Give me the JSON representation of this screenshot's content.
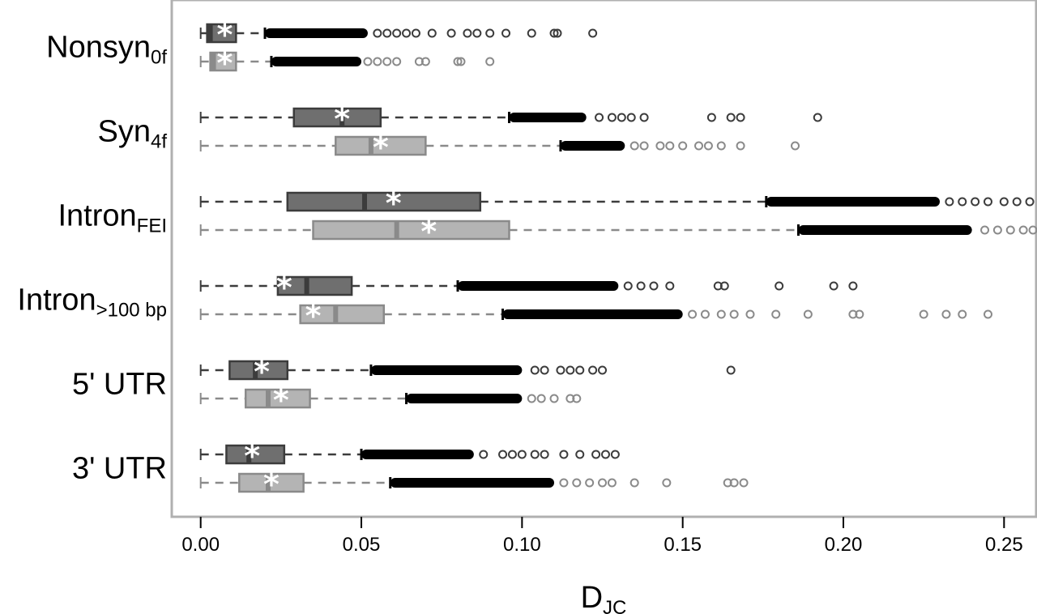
{
  "chart_data": {
    "type": "boxplot",
    "xlabel": "D",
    "xlabel_sub": "JC",
    "xlim": [
      -0.009,
      0.26
    ],
    "x_ticks": [
      {
        "value": 0.0,
        "label": "0.00"
      },
      {
        "value": 0.05,
        "label": "0.05"
      },
      {
        "value": 0.1,
        "label": "0.10"
      },
      {
        "value": 0.15,
        "label": "0.15"
      },
      {
        "value": 0.2,
        "label": "0.20"
      },
      {
        "value": 0.25,
        "label": "0.25"
      }
    ],
    "grid": false,
    "mean_marker": "*",
    "colors": {
      "series_dark": "#6f6f6f",
      "series_light": "#b4b4b4",
      "dark_stroke": "#3c3c3c",
      "light_stroke": "#8a8a8a",
      "frame": "#b0b0b0"
    },
    "categories": [
      {
        "name": "Nonsyn",
        "sub": "0f",
        "boxes": [
          {
            "whisker_low": 0.0,
            "q1": 0.002,
            "median": 0.003,
            "q3": 0.011,
            "whisker_high": 0.02,
            "mean": 0.0075,
            "outlier_dense_to": 0.052,
            "outliers": [
              0.055,
              0.058,
              0.061,
              0.064,
              0.067,
              0.072,
              0.078,
              0.083,
              0.086,
              0.09,
              0.095,
              0.103,
              0.11,
              0.111,
              0.122
            ]
          },
          {
            "whisker_low": 0.0,
            "q1": 0.003,
            "median": 0.004,
            "q3": 0.011,
            "whisker_high": 0.022,
            "mean": 0.0075,
            "outlier_dense_to": 0.05,
            "outliers": [
              0.052,
              0.055,
              0.058,
              0.061,
              0.068,
              0.07,
              0.08,
              0.081,
              0.09
            ]
          }
        ]
      },
      {
        "name": "Syn",
        "sub": "4f",
        "boxes": [
          {
            "whisker_low": 0.0,
            "q1": 0.029,
            "median": 0.044,
            "q3": 0.056,
            "whisker_high": 0.096,
            "mean": 0.044,
            "outlier_dense_to": 0.12,
            "outliers": [
              0.124,
              0.128,
              0.131,
              0.134,
              0.138,
              0.159,
              0.165,
              0.168,
              0.192
            ]
          },
          {
            "whisker_low": 0.0,
            "q1": 0.042,
            "median": 0.053,
            "q3": 0.07,
            "whisker_high": 0.112,
            "mean": 0.056,
            "outlier_dense_to": 0.132,
            "outliers": [
              0.135,
              0.138,
              0.143,
              0.146,
              0.15,
              0.155,
              0.158,
              0.162,
              0.168,
              0.185
            ]
          }
        ]
      },
      {
        "name": "Intron",
        "sub": "FEI",
        "boxes": [
          {
            "whisker_low": 0.0,
            "q1": 0.027,
            "median": 0.051,
            "q3": 0.087,
            "whisker_high": 0.176,
            "mean": 0.06,
            "outlier_dense_to": 0.23,
            "outliers": [
              0.233,
              0.237,
              0.241,
              0.245,
              0.25,
              0.254,
              0.258
            ]
          },
          {
            "whisker_low": 0.0,
            "q1": 0.035,
            "median": 0.061,
            "q3": 0.096,
            "whisker_high": 0.186,
            "mean": 0.071,
            "outlier_dense_to": 0.24,
            "outliers": [
              0.244,
              0.248,
              0.252,
              0.256,
              0.259
            ]
          }
        ]
      },
      {
        "name": "Intron",
        "sub": ">100 bp",
        "boxes": [
          {
            "whisker_low": 0.0,
            "q1": 0.024,
            "median": 0.033,
            "q3": 0.047,
            "whisker_high": 0.08,
            "mean": 0.026,
            "outlier_dense_to": 0.13,
            "outliers": [
              0.133,
              0.137,
              0.141,
              0.146,
              0.161,
              0.163,
              0.18,
              0.197,
              0.203
            ]
          },
          {
            "whisker_low": 0.0,
            "q1": 0.031,
            "median": 0.042,
            "q3": 0.057,
            "whisker_high": 0.094,
            "mean": 0.035,
            "outlier_dense_to": 0.15,
            "outliers": [
              0.153,
              0.157,
              0.162,
              0.166,
              0.171,
              0.179,
              0.189,
              0.203,
              0.205,
              0.225,
              0.232,
              0.237,
              0.245
            ]
          }
        ]
      },
      {
        "name": "5' UTR",
        "sub": "",
        "boxes": [
          {
            "whisker_low": 0.0,
            "q1": 0.009,
            "median": 0.017,
            "q3": 0.027,
            "whisker_high": 0.053,
            "mean": 0.019,
            "outlier_dense_to": 0.1,
            "outliers": [
              0.104,
              0.107,
              0.112,
              0.115,
              0.118,
              0.122,
              0.125,
              0.165
            ]
          },
          {
            "whisker_low": 0.0,
            "q1": 0.014,
            "median": 0.021,
            "q3": 0.034,
            "whisker_high": 0.064,
            "mean": 0.025,
            "outlier_dense_to": 0.1,
            "outliers": [
              0.103,
              0.106,
              0.11,
              0.115,
              0.117
            ]
          }
        ]
      },
      {
        "name": "3' UTR",
        "sub": "",
        "boxes": [
          {
            "whisker_low": 0.0,
            "q1": 0.008,
            "median": 0.015,
            "q3": 0.026,
            "whisker_high": 0.05,
            "mean": 0.016,
            "outlier_dense_to": 0.085,
            "outliers": [
              0.088,
              0.094,
              0.097,
              0.1,
              0.104,
              0.107,
              0.113,
              0.118,
              0.123,
              0.126,
              0.129
            ]
          },
          {
            "whisker_low": 0.0,
            "q1": 0.012,
            "median": 0.021,
            "q3": 0.032,
            "whisker_high": 0.059,
            "mean": 0.022,
            "outlier_dense_to": 0.11,
            "outliers": [
              0.113,
              0.117,
              0.121,
              0.125,
              0.128,
              0.135,
              0.145,
              0.164,
              0.166,
              0.169
            ]
          }
        ]
      }
    ]
  }
}
